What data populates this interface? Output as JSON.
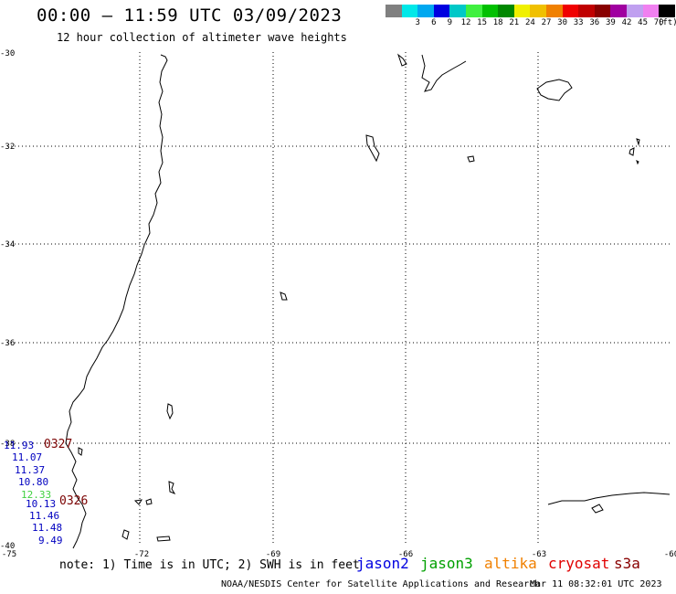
{
  "header": {
    "title": "00:00 – 11:59 UTC 03/09/2023",
    "subtitle": "12 hour collection of altimeter wave heights"
  },
  "color_scale": {
    "unit_label": "(ft)",
    "swatches": [
      {
        "color": "#808080",
        "label": ""
      },
      {
        "color": "#00e8e8",
        "label": "3"
      },
      {
        "color": "#00a8f0",
        "label": "6"
      },
      {
        "color": "#0000e0",
        "label": "9"
      },
      {
        "color": "#00c8c8",
        "label": "12"
      },
      {
        "color": "#40f040",
        "label": "15"
      },
      {
        "color": "#00c000",
        "label": "18"
      },
      {
        "color": "#008800",
        "label": "21"
      },
      {
        "color": "#f0f000",
        "label": "24"
      },
      {
        "color": "#f0c000",
        "label": "27"
      },
      {
        "color": "#f08000",
        "label": "30"
      },
      {
        "color": "#f00000",
        "label": "33"
      },
      {
        "color": "#c00000",
        "label": "36"
      },
      {
        "color": "#880000",
        "label": "39"
      },
      {
        "color": "#a000a0",
        "label": "42"
      },
      {
        "color": "#c0a0f0",
        "label": "45"
      },
      {
        "color": "#f080f0",
        "label": "70"
      },
      {
        "color": "#000000",
        "label": ""
      }
    ]
  },
  "map": {
    "latitudes": [
      "-30",
      "-32",
      "-34",
      "-36",
      "-38",
      "-40"
    ],
    "longitudes": [
      "-75",
      "-72",
      "-69",
      "-66",
      "-63",
      "-60"
    ]
  },
  "track_labels": {
    "north": "0327",
    "south": "0326"
  },
  "wave_heights": [
    {
      "value": "11.93",
      "color": "#0000c0"
    },
    {
      "value": "11.07",
      "color": "#0000c0"
    },
    {
      "value": "11.37",
      "color": "#0000c0"
    },
    {
      "value": "10.80",
      "color": "#0000c0"
    },
    {
      "value": "12.33",
      "color": "#40d040"
    },
    {
      "value": "10.13",
      "color": "#0000c0"
    },
    {
      "value": "11.46",
      "color": "#0000c0"
    },
    {
      "value": "11.48",
      "color": "#0000c0"
    },
    {
      "value": "9.49",
      "color": "#0000c0"
    }
  ],
  "footer": {
    "note": "note: 1) Time is in UTC; 2) SWH is in feet",
    "satellites": [
      {
        "name": "jason2",
        "color": "#0000e0"
      },
      {
        "name": "jason3",
        "color": "#00a000"
      },
      {
        "name": "altika",
        "color": "#f08000"
      },
      {
        "name": "cryosat",
        "color": "#e00000"
      },
      {
        "name": "s3a",
        "color": "#880000"
      }
    ],
    "credit": "NOAA/NESDIS Center for Satellite Applications and Research",
    "timestamp": "Mar 11 08:32:01 UTC 2023"
  }
}
